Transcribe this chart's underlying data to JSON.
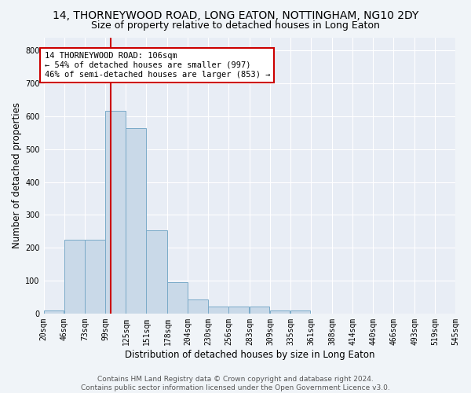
{
  "title": "14, THORNEYWOOD ROAD, LONG EATON, NOTTINGHAM, NG10 2DY",
  "subtitle": "Size of property relative to detached houses in Long Eaton",
  "xlabel": "Distribution of detached houses by size in Long Eaton",
  "ylabel": "Number of detached properties",
  "bar_color": "#c9d9e8",
  "bar_edge_color": "#7aaac8",
  "background_color": "#e8edf5",
  "grid_color": "#ffffff",
  "fig_bg_color": "#f0f4f8",
  "annotation_line_color": "#cc0000",
  "annotation_box_color": "#ffffff",
  "annotation_box_edge_color": "#cc0000",
  "annotation_text": "14 THORNEYWOOD ROAD: 106sqm\n← 54% of detached houses are smaller (997)\n46% of semi-detached houses are larger (853) →",
  "property_size": 106,
  "bin_edges": [
    20,
    46,
    73,
    99,
    125,
    151,
    178,
    204,
    230,
    256,
    283,
    309,
    335,
    361,
    388,
    414,
    440,
    466,
    493,
    519,
    545
  ],
  "bin_labels": [
    "20sqm",
    "46sqm",
    "73sqm",
    "99sqm",
    "125sqm",
    "151sqm",
    "178sqm",
    "204sqm",
    "230sqm",
    "256sqm",
    "283sqm",
    "309sqm",
    "335sqm",
    "361sqm",
    "388sqm",
    "414sqm",
    "440sqm",
    "466sqm",
    "493sqm",
    "519sqm",
    "545sqm"
  ],
  "bar_heights": [
    10,
    225,
    225,
    617,
    565,
    253,
    96,
    42,
    20,
    20,
    20,
    8,
    8,
    0,
    0,
    0,
    0,
    0,
    0,
    0
  ],
  "ylim": [
    0,
    840
  ],
  "yticks": [
    0,
    100,
    200,
    300,
    400,
    500,
    600,
    700,
    800
  ],
  "footer_text": "Contains HM Land Registry data © Crown copyright and database right 2024.\nContains public sector information licensed under the Open Government Licence v3.0.",
  "title_fontsize": 10,
  "subtitle_fontsize": 9,
  "axis_label_fontsize": 8.5,
  "tick_fontsize": 7,
  "footer_fontsize": 6.5,
  "annotation_fontsize": 7.5
}
